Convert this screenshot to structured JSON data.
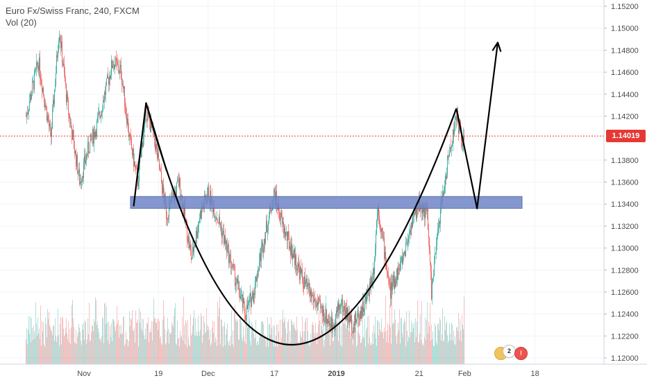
{
  "header": {
    "title": "Euro Fx/Swiss Franc, 240, FXCM",
    "volume_label": "Vol (20)"
  },
  "price_axis": {
    "labels": [
      "1.15200",
      "1.15000",
      "1.14800",
      "1.14600",
      "1.14400",
      "1.14200",
      "1.14019",
      "1.13800",
      "1.13600",
      "1.13400",
      "1.13200",
      "1.13000",
      "1.12800",
      "1.12600",
      "1.12400",
      "1.12200",
      "1.12000"
    ],
    "current_price": "1.14019"
  },
  "time_axis": {
    "labels": [
      "Nov",
      "19",
      "Dec",
      "17",
      "2019",
      "21",
      "Feb",
      "18"
    ]
  },
  "events": {
    "badge_count": "2"
  },
  "colors": {
    "up": "#26a69a",
    "down": "#ef5350",
    "zone_fill": "#6f85c7",
    "price_line": "#e53935",
    "drawing": "#000000",
    "grid": "#f0f3fa",
    "axis_text": "#4a4a4a"
  },
  "chart_data": {
    "type": "candlestick",
    "title": "Euro Fx/Swiss Franc, 240, FXCM",
    "ylim": [
      1.1195,
      1.153
    ],
    "current_price": 1.14019,
    "grid": true,
    "horizontal_zone": [
      1.1338,
      1.1345
    ],
    "drawing_paths": [
      {
        "kind": "polyline",
        "points": [
          [
            "Nov 13",
            1.1338
          ],
          [
            "Nov 16",
            1.1432
          ],
          [
            "Nov 21",
            1.137
          ]
        ]
      },
      {
        "kind": "cup_curve",
        "points": [
          [
            "Nov 16",
            1.1432
          ],
          [
            "Dec 21",
            1.1212
          ],
          [
            "Jan 30",
            1.1427
          ]
        ]
      },
      {
        "kind": "polyline",
        "points": [
          [
            "Jan 30",
            1.1427
          ],
          [
            "Feb 4",
            1.1336
          ],
          [
            "Feb 9",
            1.1487
          ]
        ],
        "arrow": true
      }
    ],
    "price_path": [
      [
        "Oct 18",
        1.142
      ],
      [
        "Oct 21",
        1.147
      ],
      [
        "Oct 24",
        1.14
      ],
      [
        "Oct 26",
        1.15
      ],
      [
        "Oct 28",
        1.143
      ],
      [
        "Oct 31",
        1.136
      ],
      [
        "Nov 2",
        1.139
      ],
      [
        "Nov 4",
        1.141
      ],
      [
        "Nov 6",
        1.144
      ],
      [
        "Nov 8",
        1.147
      ],
      [
        "Nov 10",
        1.146
      ],
      [
        "Nov 12",
        1.14
      ],
      [
        "Nov 14",
        1.136
      ],
      [
        "Nov 16",
        1.1425
      ],
      [
        "Nov 18",
        1.14
      ],
      [
        "Nov 21",
        1.133
      ],
      [
        "Nov 24",
        1.136
      ],
      [
        "Nov 27",
        1.129
      ],
      [
        "Nov 29",
        1.133
      ],
      [
        "Dec 1",
        1.135
      ],
      [
        "Dec 4",
        1.132
      ],
      [
        "Dec 7",
        1.128
      ],
      [
        "Dec 10",
        1.124
      ],
      [
        "Dec 12",
        1.126
      ],
      [
        "Dec 14",
        1.13
      ],
      [
        "Dec 17",
        1.135
      ],
      [
        "Dec 19",
        1.132
      ],
      [
        "Dec 21",
        1.13
      ],
      [
        "Dec 24",
        1.127
      ],
      [
        "Dec 27",
        1.125
      ],
      [
        "Dec 31",
        1.123
      ],
      [
        "Jan 2",
        1.125
      ],
      [
        "Jan 5",
        1.123
      ],
      [
        "Jan 8",
        1.125
      ],
      [
        "Jan 10",
        1.128
      ],
      [
        "Jan 11",
        1.134
      ],
      [
        "Jan 14",
        1.126
      ],
      [
        "Jan 17",
        1.129
      ],
      [
        "Jan 19",
        1.132
      ],
      [
        "Jan 21",
        1.134
      ],
      [
        "Jan 23",
        1.133
      ],
      [
        "Jan 24",
        1.126
      ],
      [
        "Jan 26",
        1.133
      ],
      [
        "Jan 28",
        1.138
      ],
      [
        "Jan 30",
        1.142
      ],
      [
        "Feb 1",
        1.139
      ]
    ],
    "volume": {
      "name": "Vol (20)",
      "note": "volume histogram colored by candle direction"
    }
  }
}
